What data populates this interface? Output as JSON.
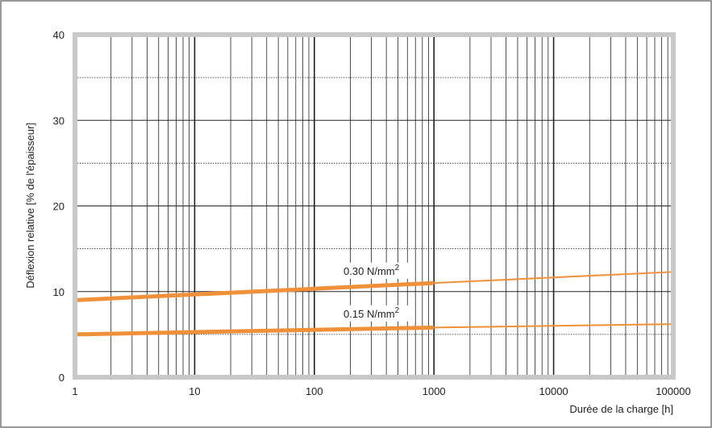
{
  "chart_data": {
    "type": "line",
    "xscale": "log",
    "xlim": [
      1,
      100000
    ],
    "ylim": [
      0,
      40
    ],
    "xlabel": "Durée de la charge [h]",
    "ylabel": "Déflexion relative [% de l'épaisseur]",
    "xticks": [
      "1",
      "10",
      "100",
      "1000",
      "10000",
      "100000"
    ],
    "yticks": [
      "0",
      "10",
      "20",
      "30",
      "40"
    ],
    "grid": true,
    "colors": {
      "series": "#f0913a",
      "grid": "#222222",
      "frame": "#c8c8c8",
      "border": "#333333"
    },
    "series": [
      {
        "name": "0.30 N/mm²",
        "label_text": "0.30 N/mm",
        "label_sup": "2",
        "measured": {
          "x": [
            1,
            1000
          ],
          "y": [
            9,
            11
          ]
        },
        "extrapolated": {
          "x": [
            1000,
            100000
          ],
          "y": [
            11,
            12.3
          ]
        }
      },
      {
        "name": "0.15 N/mm²",
        "label_text": "0.15 N/mm",
        "label_sup": "2",
        "measured": {
          "x": [
            1,
            1000
          ],
          "y": [
            5,
            5.8
          ]
        },
        "extrapolated": {
          "x": [
            1000,
            100000
          ],
          "y": [
            5.8,
            6.2
          ]
        }
      }
    ]
  }
}
